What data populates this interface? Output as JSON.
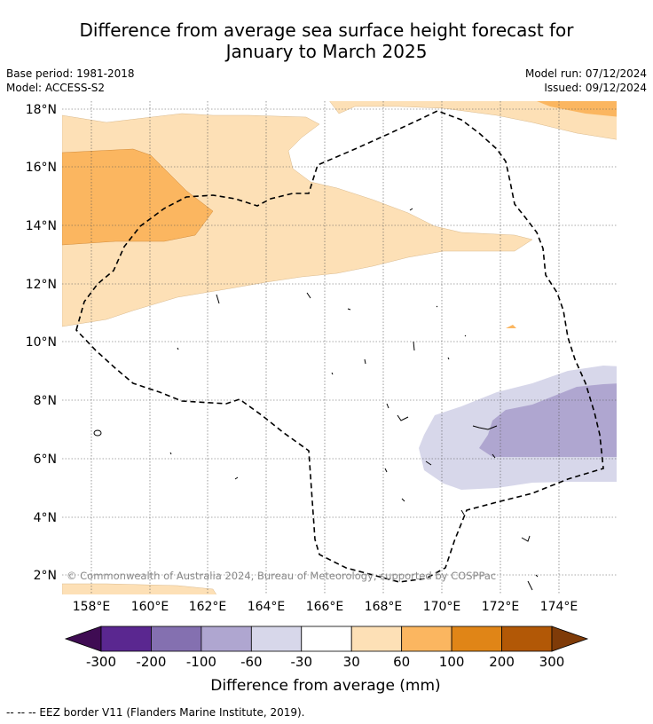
{
  "title_line1": "Difference from average sea surface height forecast for",
  "title_line2": "January to March 2025",
  "base_period": "Base period: 1981-2018",
  "model": "Model: ACCESS-S2",
  "model_run": "Model run: 07/12/2024",
  "issued": "Issued: 09/12/2024",
  "copyright": "© Commonwealth of Australia 2024, Bureau of Meteorology, supported by COSPPac",
  "lat_labels": [
    "18°N",
    "16°N",
    "14°N",
    "12°N",
    "10°N",
    "8°N",
    "6°N",
    "4°N",
    "2°N"
  ],
  "lon_labels": [
    "158°E",
    "160°E",
    "162°E",
    "164°E",
    "166°E",
    "168°E",
    "170°E",
    "172°E",
    "174°E"
  ],
  "colorbar": {
    "ticks": [
      "-300",
      "-200",
      "-100",
      "-60",
      "-30",
      "30",
      "60",
      "100",
      "200",
      "300"
    ],
    "colors": [
      "#3f0c53",
      "#5a2790",
      "#8470b0",
      "#afa6d0",
      "#d7d7ea",
      "#ffffff",
      "#fde0b6",
      "#fbb660",
      "#e08517",
      "#b25806",
      "#7f3b08"
    ],
    "label": "Difference from average (mm)"
  },
  "legend_eez": "--  --  -- EEZ border V11 (Flanders Marine Institute, 2019).",
  "map_colors": {
    "light_orange": "#fde0b6",
    "orange": "#fbb660",
    "light_purple": "#d7d7ea",
    "purple": "#afa6d0"
  }
}
